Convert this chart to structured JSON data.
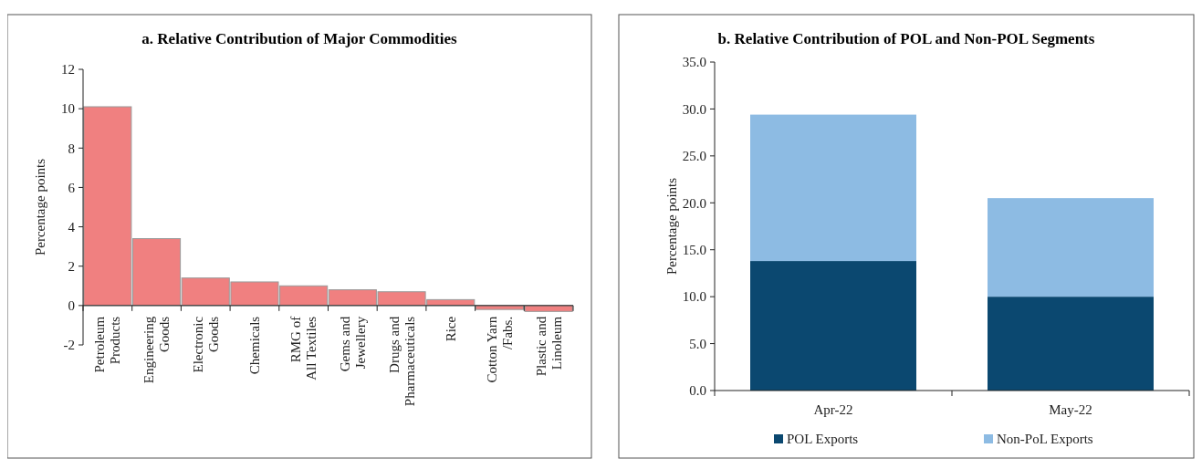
{
  "chart_data": [
    {
      "type": "bar",
      "title": "a. Relative Contribution of Major Commodities",
      "ylabel": "Percentage points",
      "categories": [
        "Petroleum Products",
        "Engineering Goods",
        "Electronic Goods",
        "Chemicals",
        "RMG of All Textiles",
        "Gems and Jewellery",
        "Drugs and Pharmaceuticals",
        "Rice",
        "Cotton Yarn /Fabs.",
        "Plastic and Linoleum"
      ],
      "values": [
        10.1,
        3.4,
        1.4,
        1.2,
        1.0,
        0.8,
        0.7,
        0.3,
        -0.2,
        -0.3
      ],
      "color": "#f08080",
      "ylim": [
        -2,
        12
      ],
      "yticks": [
        -2,
        0,
        2,
        4,
        6,
        8,
        10,
        12
      ],
      "grid": false,
      "legend": false
    },
    {
      "type": "bar",
      "title": "b. Relative Contribution of POL and Non-POL Segments",
      "ylabel": "Percentage points",
      "categories": [
        "Apr-22",
        "May-22"
      ],
      "stacked": true,
      "series": [
        {
          "name": "POL Exports",
          "color": "#0b4870",
          "values": [
            13.8,
            10.0
          ]
        },
        {
          "name": "Non-PoL Exports",
          "color": "#8dbbe3",
          "values": [
            15.6,
            10.5
          ]
        }
      ],
      "ylim": [
        0,
        35
      ],
      "yticks": [
        {
          "value": 0,
          "label": "0.0"
        },
        {
          "value": 5,
          "label": "5.0"
        },
        {
          "value": 10,
          "label": "10.0"
        },
        {
          "value": 15,
          "label": "15.0"
        },
        {
          "value": 20,
          "label": "20.0"
        },
        {
          "value": 25,
          "label": "25.0"
        },
        {
          "value": 30,
          "label": "30.0"
        },
        {
          "value": 35,
          "label": "35.0"
        }
      ],
      "grid": false,
      "legend": "bottom"
    }
  ]
}
